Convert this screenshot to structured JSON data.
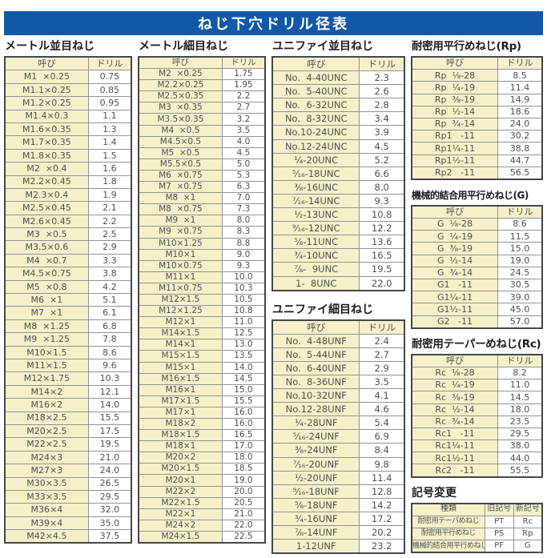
{
  "page_title": "ねじ下穴ドリル径表",
  "column_headers": {
    "designation": "呼び",
    "drill": "ドリル"
  },
  "corner_mark": "--",
  "colors": {
    "header_bar_blue": "#1159a8",
    "cell_cream": "#f5f0c8",
    "table_border": "#43474b"
  },
  "sections": {
    "metric_coarse": {
      "title": "メートル並目ねじ",
      "rows": [
        [
          "M1  ×0.25",
          "0.75"
        ],
        [
          "M1.1×0.25",
          "0.85"
        ],
        [
          "M1.2×0.25",
          "0.95"
        ],
        [
          "M1.4×0.3",
          "1.1"
        ],
        [
          "M1.6×0.35",
          "1.3"
        ],
        [
          "M1.7×0.35",
          "1.4"
        ],
        [
          "M1.8×0.35",
          "1.5"
        ],
        [
          "M2  ×0.4",
          "1.6"
        ],
        [
          "M2.2×0.45",
          "1.8"
        ],
        [
          "M2.3×0.4",
          "1.9"
        ],
        [
          "M2.5×0.45",
          "2.1"
        ],
        [
          "M2.6×0.45",
          "2.2"
        ],
        [
          "M3  ×0.5",
          "2.5"
        ],
        [
          "M3.5×0.6",
          "2.9"
        ],
        [
          "M4  ×0.7",
          "3.3"
        ],
        [
          "M4.5×0.75",
          "3.8"
        ],
        [
          "M5  ×0.8",
          "4.2"
        ],
        [
          "M6  ×1",
          "5.1"
        ],
        [
          "M7  ×1",
          "6.1"
        ],
        [
          "M8  ×1.25",
          "6.8"
        ],
        [
          "M9  ×1.25",
          "7.8"
        ],
        [
          "M10×1.5",
          "8.6"
        ],
        [
          "M11×1.5",
          "9.6"
        ],
        [
          "M12×1.75",
          "10.3"
        ],
        [
          "M14×2",
          "12.1"
        ],
        [
          "M16×2",
          "14.0"
        ],
        [
          "M18×2.5",
          "15.5"
        ],
        [
          "M20×2.5",
          "17.5"
        ],
        [
          "M22×2.5",
          "19.5"
        ],
        [
          "M24×3",
          "21.0"
        ],
        [
          "M27×3",
          "24.0"
        ],
        [
          "M30×3.5",
          "26.5"
        ],
        [
          "M33×3.5",
          "29.5"
        ],
        [
          "M36×4",
          "32.0"
        ],
        [
          "M39×4",
          "35.0"
        ],
        [
          "M42×4.5",
          "37.5"
        ]
      ]
    },
    "metric_fine": {
      "title": "メートル細目ねじ",
      "rows": [
        [
          "M2  ×0.25",
          "1.75"
        ],
        [
          "M2.2×0.25",
          "1.95"
        ],
        [
          "M2.5×0.35",
          "2.2"
        ],
        [
          "M3  ×0.35",
          "2.7"
        ],
        [
          "M3.5×0.35",
          "3.2"
        ],
        [
          "M4  ×0.5",
          "3.5"
        ],
        [
          "M4.5×0.5",
          "4.0"
        ],
        [
          "M5  ×0.5",
          "4.5"
        ],
        [
          "M5.5×0.5",
          "5.0"
        ],
        [
          "M6  ×0.75",
          "5.3"
        ],
        [
          "M7  ×0.75",
          "6.3"
        ],
        [
          "M8  ×1",
          "7.0"
        ],
        [
          "M8  ×0.75",
          "7.3"
        ],
        [
          "M9  ×1",
          "8.0"
        ],
        [
          "M9  ×0.75",
          "8.3"
        ],
        [
          "M10×1.25",
          "8.8"
        ],
        [
          "M10×1",
          "9.0"
        ],
        [
          "M10×0.75",
          "9.3"
        ],
        [
          "M11×1",
          "10.0"
        ],
        [
          "M11×0.75",
          "10.3"
        ],
        [
          "M12×1.5",
          "10.5"
        ],
        [
          "M12×1.25",
          "10.8"
        ],
        [
          "M12×1",
          "11.0"
        ],
        [
          "M14×1.5",
          "12.5"
        ],
        [
          "M14×1",
          "13.0"
        ],
        [
          "M15×1.5",
          "13.5"
        ],
        [
          "M15×1",
          "14.0"
        ],
        [
          "M16×1.5",
          "14.5"
        ],
        [
          "M16×1",
          "15.0"
        ],
        [
          "M17×1.5",
          "15.5"
        ],
        [
          "M17×1",
          "16.0"
        ],
        [
          "M18×2",
          "16.0"
        ],
        [
          "M18×1.5",
          "16.5"
        ],
        [
          "M18×1",
          "17.0"
        ],
        [
          "M20×2",
          "18.0"
        ],
        [
          "M20×1.5",
          "18.5"
        ],
        [
          "M20×1",
          "19.0"
        ],
        [
          "M22×2",
          "20.0"
        ],
        [
          "M22×1.5",
          "20.5"
        ],
        [
          "M22×1",
          "21.0"
        ],
        [
          "M24×2",
          "22.0"
        ],
        [
          "M24×1.5",
          "22.5"
        ]
      ]
    },
    "unified_coarse": {
      "title": "ユニファイ並目ねじ",
      "rows": [
        [
          "No.  4-40UNC",
          "2.3"
        ],
        [
          "No.  5-40UNC",
          "2.6"
        ],
        [
          "No.  6-32UNC",
          "2.8"
        ],
        [
          "No.  8-32UNC",
          "3.4"
        ],
        [
          "No.10-24UNC",
          "3.9"
        ],
        [
          "No.12-24UNC",
          "4.5"
        ],
        [
          "¹⁄₄-20UNC",
          "5.2"
        ],
        [
          "⁵⁄₁₆-18UNC",
          "6.6"
        ],
        [
          "³⁄₈-16UNC",
          "8.0"
        ],
        [
          "⁷⁄₁₆-14UNC",
          "9.3"
        ],
        [
          "¹⁄₂-13UNC",
          "10.8"
        ],
        [
          "⁹⁄₁₆-12UNC",
          "12.2"
        ],
        [
          "⁵⁄₈-11UNC",
          "13.6"
        ],
        [
          "³⁄₄-10UNC",
          "16.5"
        ],
        [
          "⁷⁄₈-  9UNC",
          "19.5"
        ],
        [
          "1-  8UNC",
          "22.0"
        ]
      ]
    },
    "unified_fine": {
      "title": "ユニファイ細目ねじ",
      "rows": [
        [
          "No.  4-48UNF",
          "2.4"
        ],
        [
          "No.  5-44UNF",
          "2.7"
        ],
        [
          "No.  6-40UNF",
          "2.9"
        ],
        [
          "No.  8-36UNF",
          "3.5"
        ],
        [
          "No.10-32UNF",
          "4.1"
        ],
        [
          "No.12-28UNF",
          "4.6"
        ],
        [
          "¹⁄₄-28UNF",
          "5.4"
        ],
        [
          "⁵⁄₁₆-24UNF",
          "6.9"
        ],
        [
          "³⁄₈-24UNF",
          "8.4"
        ],
        [
          "⁷⁄₁₆-20UNF",
          "9.8"
        ],
        [
          "¹⁄₂-20UNF",
          "11.4"
        ],
        [
          "⁹⁄₁₆-18UNF",
          "12.8"
        ],
        [
          "⁵⁄₈-18UNF",
          "14.2"
        ],
        [
          "³⁄₄-16UNF",
          "17.2"
        ],
        [
          "⁷⁄₈-14UNF",
          "20.2"
        ],
        [
          "1-12UNF",
          "23.2"
        ]
      ]
    },
    "rp": {
      "title": "耐密用平行めねじ(Rp)",
      "rows": [
        [
          "Rp  ¹⁄₈-28",
          "8.5"
        ],
        [
          "Rp  ¹⁄₄-19",
          "11.4"
        ],
        [
          "Rp  ³⁄₈-19",
          "14.9"
        ],
        [
          "Rp  ¹⁄₂-14",
          "18.6"
        ],
        [
          "Rp  ³⁄₄-14",
          "24.0"
        ],
        [
          "Rp1   -11",
          "30.2"
        ],
        [
          "Rp1¹⁄₄-11",
          "38.8"
        ],
        [
          "Rp1¹⁄₂-11",
          "44.7"
        ],
        [
          "Rp2   -11",
          "56.5"
        ]
      ]
    },
    "g": {
      "title": "機械的結合用平行めねじ(G)",
      "rows": [
        [
          "G  ¹⁄₈-28",
          "8.6"
        ],
        [
          "G  ¹⁄₄-19",
          "11.5"
        ],
        [
          "G  ³⁄₈-19",
          "15.0"
        ],
        [
          "G  ¹⁄₂-14",
          "19.0"
        ],
        [
          "G  ³⁄₄-14",
          "24.5"
        ],
        [
          "G1   -11",
          "30.5"
        ],
        [
          "G1¹⁄₄-11",
          "39.0"
        ],
        [
          "G1¹⁄₂-11",
          "45.0"
        ],
        [
          "G2   -11",
          "57.0"
        ]
      ]
    },
    "rc": {
      "title": "耐密用テーパーめねじ(Rc)",
      "rows": [
        [
          "Rc  ¹⁄₈-28",
          "8.2"
        ],
        [
          "Rc  ¹⁄₄-19",
          "11.0"
        ],
        [
          "Rc  ³⁄₈-19",
          "14.5"
        ],
        [
          "Rc  ¹⁄₂-14",
          "18.0"
        ],
        [
          "Rc  ³⁄₄-14",
          "23.5"
        ],
        [
          "Rc1   -11",
          "29.5"
        ],
        [
          "Rc1¹⁄₄-11",
          "38.0"
        ],
        [
          "Rc1¹⁄₂-11",
          "44.0"
        ],
        [
          "Rc2   -11",
          "55.5"
        ]
      ]
    },
    "symbol_change": {
      "title": "記号変更",
      "headers": [
        "種類",
        "旧記号",
        "新記号"
      ],
      "rows": [
        [
          "耐密用テーパめねじ",
          "PT",
          "Rc"
        ],
        [
          "耐密用平行めねじ",
          "PS",
          "Rp"
        ],
        [
          "機械的結合用平行めねじ",
          "PF",
          "G"
        ]
      ]
    }
  }
}
